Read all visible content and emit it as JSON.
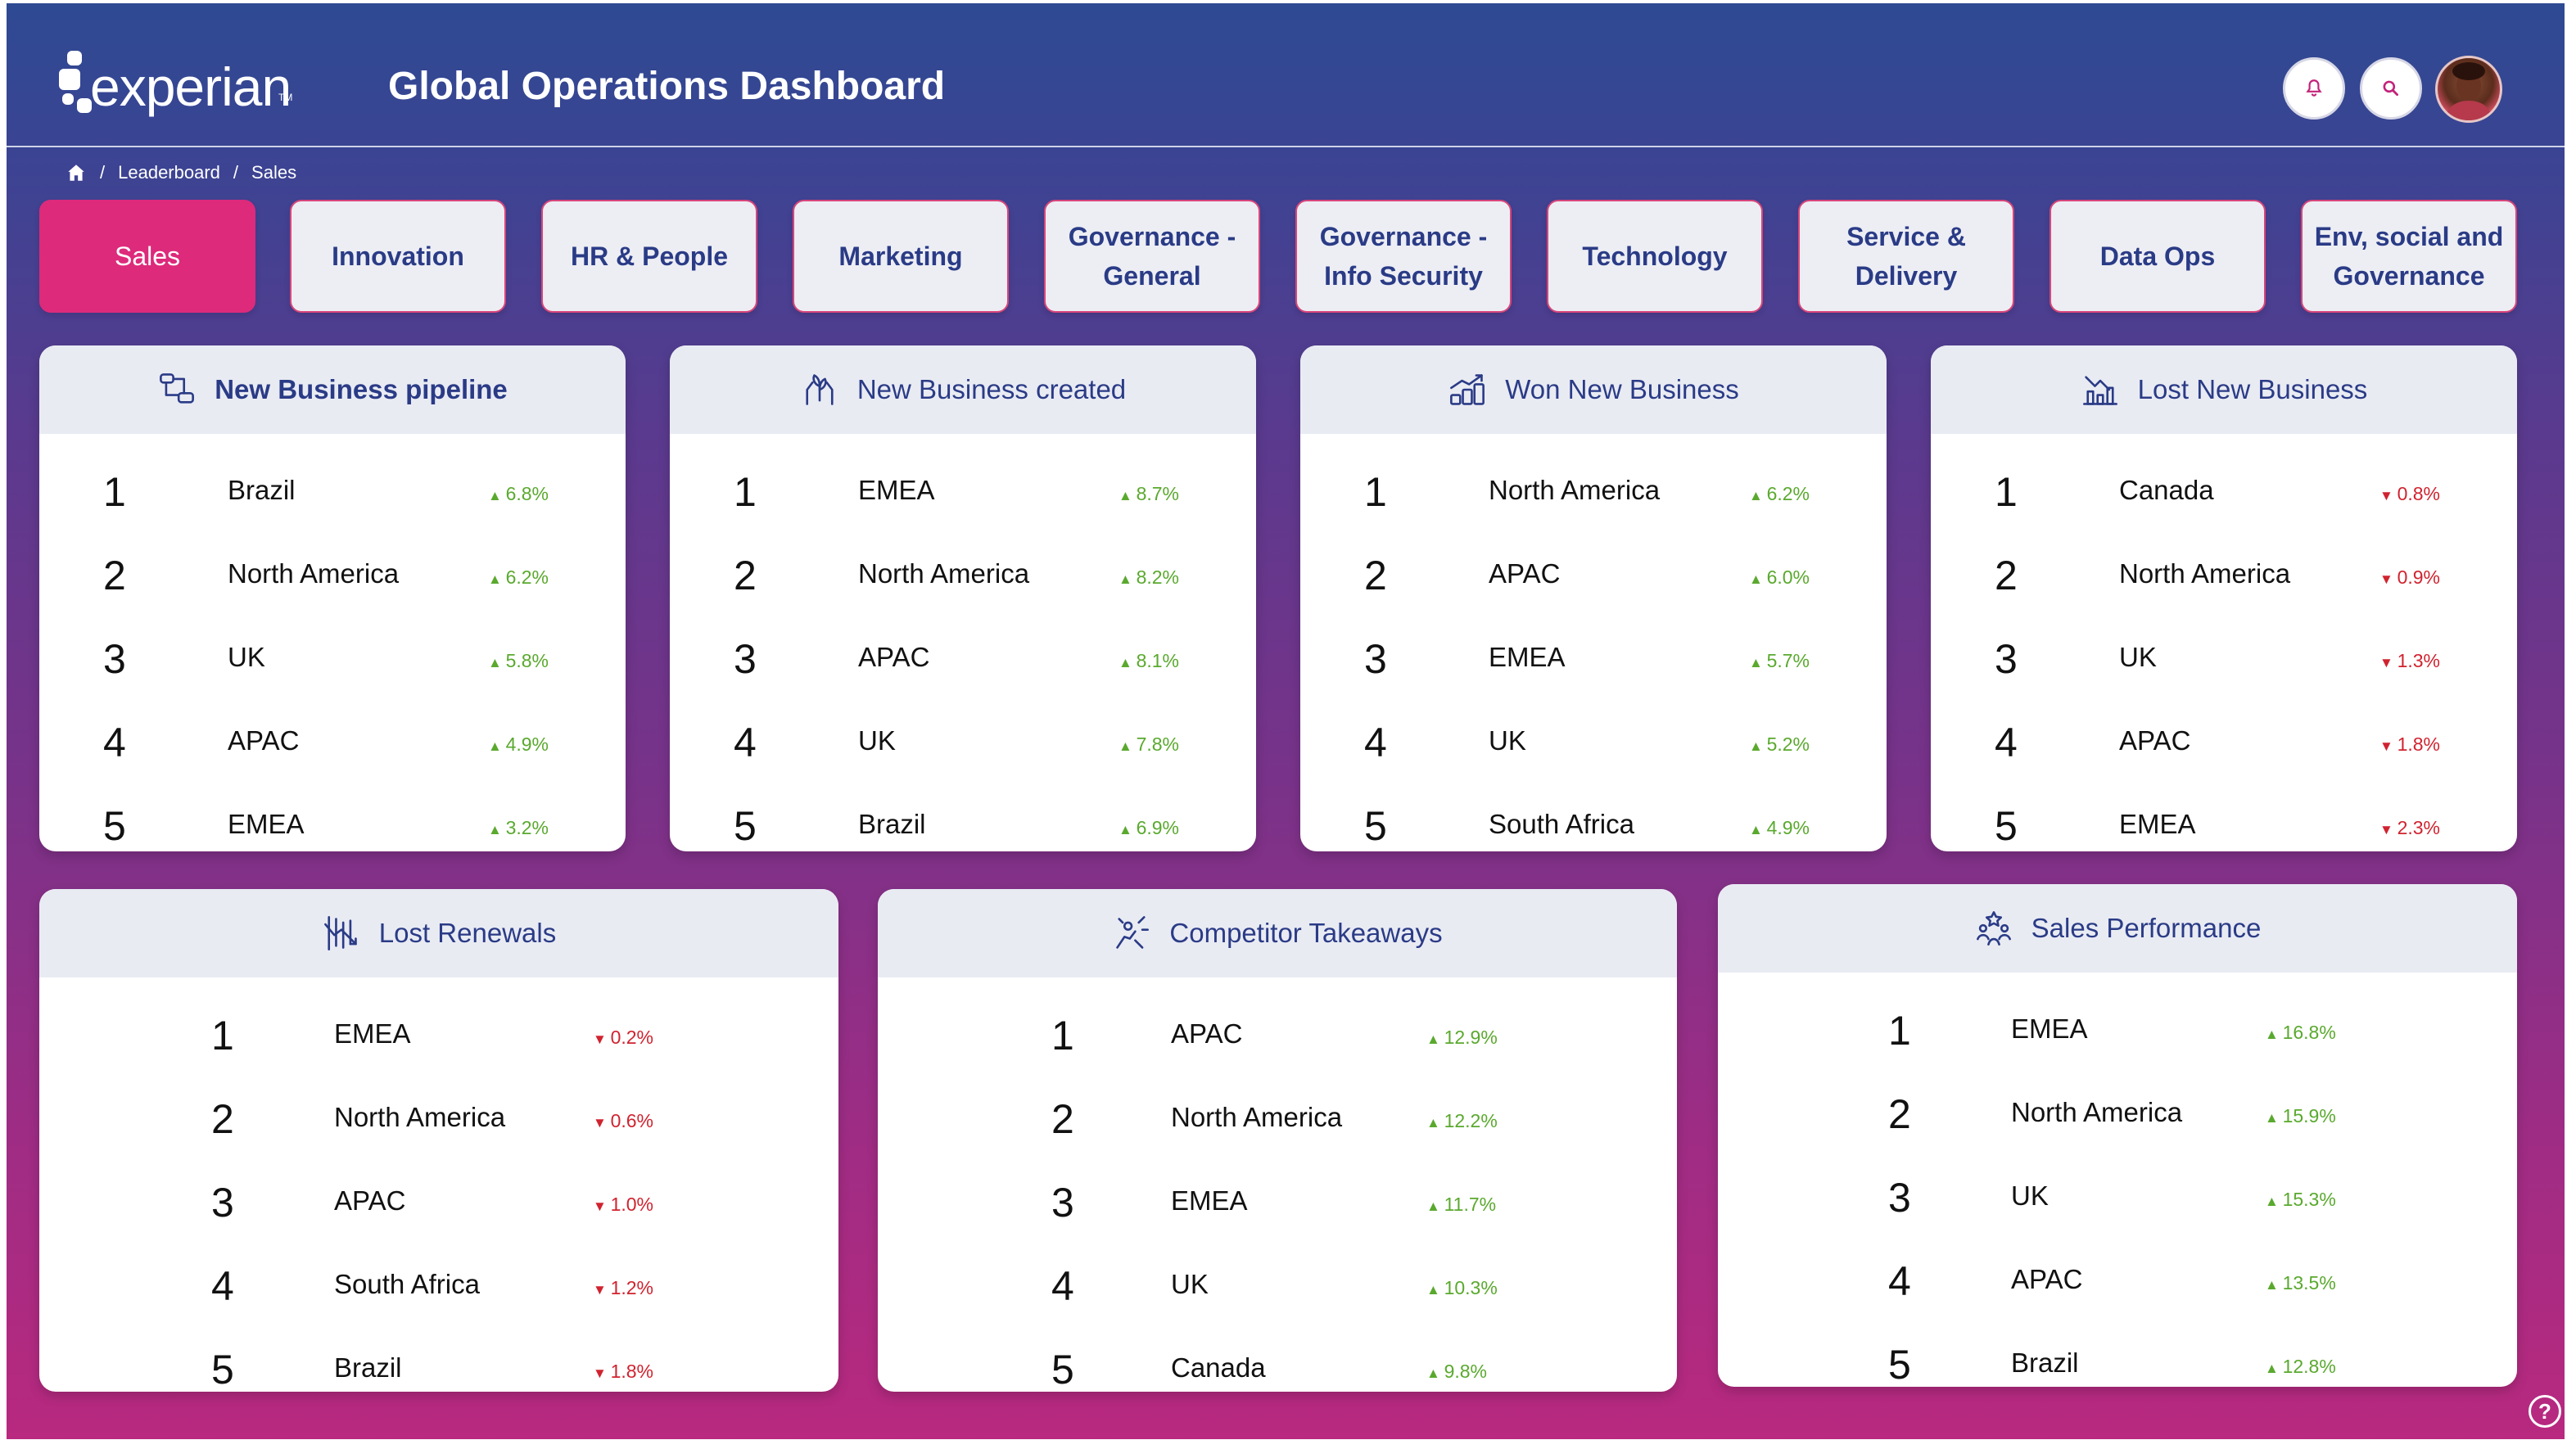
{
  "header": {
    "logo_text": "experian",
    "logo_tm": "TM",
    "title": "Global Operations Dashboard"
  },
  "breadcrumb": [
    "Leaderboard",
    "Sales"
  ],
  "tabs": [
    {
      "label": "Sales",
      "active": true
    },
    {
      "label": "Innovation"
    },
    {
      "label": "HR & People"
    },
    {
      "label": "Marketing"
    },
    {
      "label": "Governance -\nGeneral"
    },
    {
      "label": "Governance -\nInfo Security"
    },
    {
      "label": "Technology"
    },
    {
      "label": "Service &\nDelivery"
    },
    {
      "label": "Data Ops"
    },
    {
      "label": "Env, social and\nGovernance"
    }
  ],
  "cards": [
    {
      "title": "New Business pipeline",
      "icon": "pipeline-icon",
      "rows": [
        {
          "rank": "1",
          "region": "Brazil",
          "change": "6.8%",
          "dir": "up"
        },
        {
          "rank": "2",
          "region": "North America",
          "change": "6.2%",
          "dir": "up"
        },
        {
          "rank": "3",
          "region": "UK",
          "change": "5.8%",
          "dir": "up"
        },
        {
          "rank": "4",
          "region": "APAC",
          "change": "4.9%",
          "dir": "up"
        },
        {
          "rank": "5",
          "region": "EMEA",
          "change": "3.2%",
          "dir": "up"
        }
      ]
    },
    {
      "title": "New Business created",
      "icon": "plant-hands-icon",
      "rows": [
        {
          "rank": "1",
          "region": "EMEA",
          "change": "8.7%",
          "dir": "up"
        },
        {
          "rank": "2",
          "region": "North America",
          "change": "8.2%",
          "dir": "up"
        },
        {
          "rank": "3",
          "region": "APAC",
          "change": "8.1%",
          "dir": "up"
        },
        {
          "rank": "4",
          "region": "UK",
          "change": "7.8%",
          "dir": "up"
        },
        {
          "rank": "5",
          "region": "Brazil",
          "change": "6.9%",
          "dir": "up"
        }
      ]
    },
    {
      "title": "Won New Business",
      "icon": "growth-bars-icon",
      "rows": [
        {
          "rank": "1",
          "region": "North America",
          "change": "6.2%",
          "dir": "up"
        },
        {
          "rank": "2",
          "region": "APAC",
          "change": "6.0%",
          "dir": "up"
        },
        {
          "rank": "3",
          "region": "EMEA",
          "change": "5.7%",
          "dir": "up"
        },
        {
          "rank": "4",
          "region": "UK",
          "change": "5.2%",
          "dir": "up"
        },
        {
          "rank": "5",
          "region": "South Africa",
          "change": "4.9%",
          "dir": "up"
        }
      ]
    },
    {
      "title": "Lost New Business",
      "icon": "decline-chart-icon",
      "rows": [
        {
          "rank": "1",
          "region": "Canada",
          "change": "0.8%",
          "dir": "down"
        },
        {
          "rank": "2",
          "region": "North America",
          "change": "0.9%",
          "dir": "down"
        },
        {
          "rank": "3",
          "region": "UK",
          "change": "1.3%",
          "dir": "down"
        },
        {
          "rank": "4",
          "region": "APAC",
          "change": "1.8%",
          "dir": "down"
        },
        {
          "rank": "5",
          "region": "EMEA",
          "change": "2.3%",
          "dir": "down"
        }
      ]
    },
    {
      "title": "Lost Renewals",
      "icon": "downtrend-icon",
      "rows": [
        {
          "rank": "1",
          "region": "EMEA",
          "change": "0.2%",
          "dir": "down"
        },
        {
          "rank": "2",
          "region": "North America",
          "change": "0.6%",
          "dir": "down"
        },
        {
          "rank": "3",
          "region": "APAC",
          "change": "1.0%",
          "dir": "down"
        },
        {
          "rank": "4",
          "region": "South Africa",
          "change": "1.2%",
          "dir": "down"
        },
        {
          "rank": "5",
          "region": "Brazil",
          "change": "1.8%",
          "dir": "down"
        }
      ]
    },
    {
      "title": "Competitor Takeaways",
      "icon": "competitor-icon",
      "rows": [
        {
          "rank": "1",
          "region": "APAC",
          "change": "12.9%",
          "dir": "up"
        },
        {
          "rank": "2",
          "region": "North America",
          "change": "12.2%",
          "dir": "up"
        },
        {
          "rank": "3",
          "region": "EMEA",
          "change": "11.7%",
          "dir": "up"
        },
        {
          "rank": "4",
          "region": "UK",
          "change": "10.3%",
          "dir": "up"
        },
        {
          "rank": "5",
          "region": "Canada",
          "change": "9.8%",
          "dir": "up"
        }
      ]
    },
    {
      "title": "Sales Performance",
      "icon": "team-star-icon",
      "rows": [
        {
          "rank": "1",
          "region": "EMEA",
          "change": "16.8%",
          "dir": "up"
        },
        {
          "rank": "2",
          "region": "North America",
          "change": "15.9%",
          "dir": "up"
        },
        {
          "rank": "3",
          "region": "UK",
          "change": "15.3%",
          "dir": "up"
        },
        {
          "rank": "4",
          "region": "APAC",
          "change": "13.5%",
          "dir": "up"
        },
        {
          "rank": "5",
          "region": "Brazil",
          "change": "12.8%",
          "dir": "up"
        }
      ]
    }
  ],
  "help_label": "?",
  "colors": {
    "up": "#5aa92e",
    "down": "#d0232f",
    "accent": "#dd2a7b",
    "title_blue": "#2a3b86"
  }
}
